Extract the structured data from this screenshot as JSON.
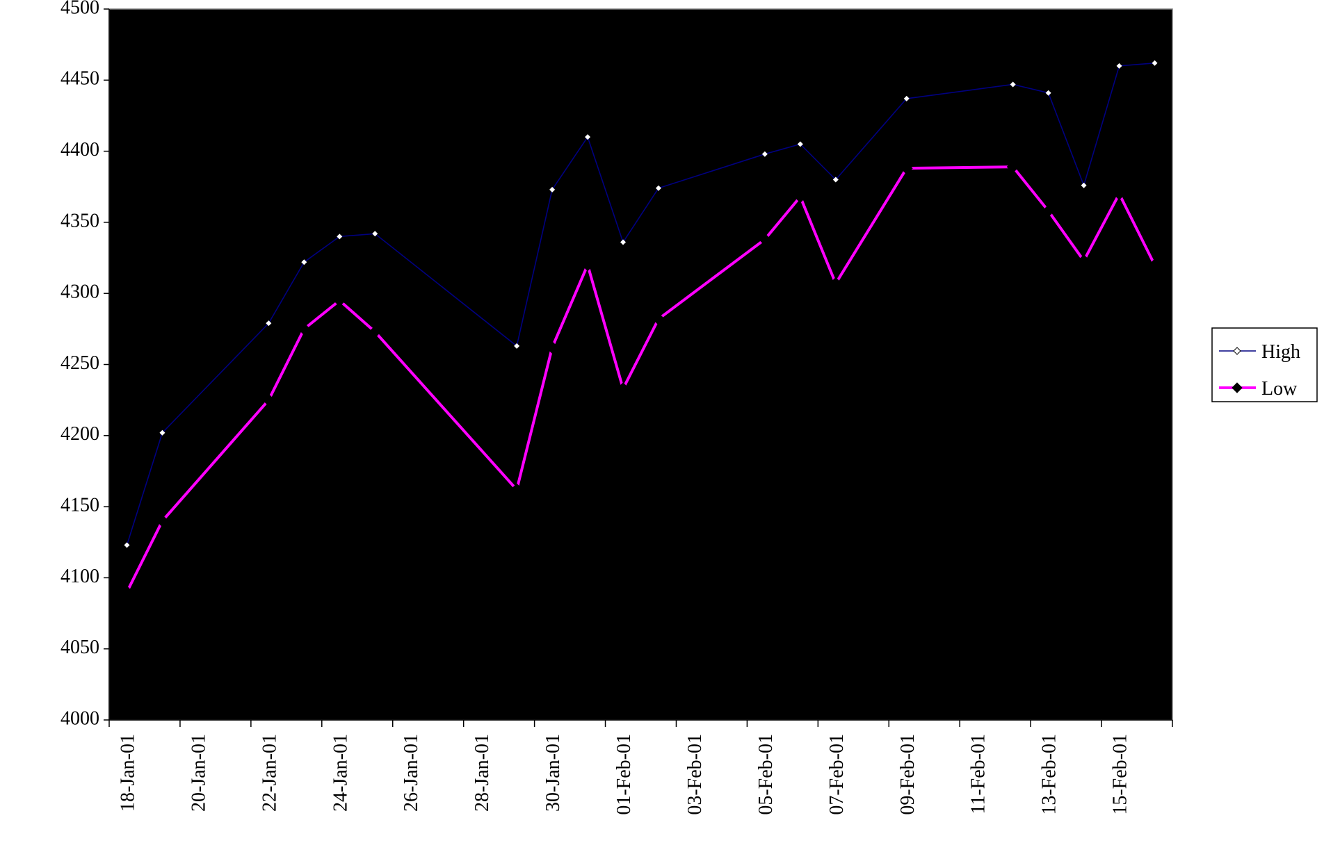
{
  "chart_data": {
    "type": "line",
    "x": [
      "18-Jan-01",
      "19-Jan-01",
      "22-Jan-01",
      "23-Jan-01",
      "24-Jan-01",
      "25-Jan-01",
      "29-Jan-01",
      "30-Jan-01",
      "31-Jan-01",
      "01-Feb-01",
      "02-Feb-01",
      "05-Feb-01",
      "06-Feb-01",
      "07-Feb-01",
      "09-Feb-01",
      "12-Feb-01",
      "13-Feb-01",
      "14-Feb-01",
      "15-Feb-01",
      "16-Feb-01"
    ],
    "series": [
      {
        "name": "High",
        "color": "#000080",
        "values": [
          4123,
          4202,
          4279,
          4322,
          4340,
          4342,
          4263,
          4373,
          4410,
          4336,
          4374,
          4398,
          4405,
          4380,
          4437,
          4447,
          4441,
          4376,
          4460,
          4462
        ]
      },
      {
        "name": "Low",
        "color": "#ff00ff",
        "values": [
          4090,
          4140,
          4225,
          4275,
          4295,
          4273,
          4162,
          4262,
          4320,
          4233,
          4282,
          4338,
          4368,
          4307,
          4388,
          4389,
          4358,
          4323,
          4370,
          4320
        ]
      }
    ],
    "xlim": [
      "18-Jan-01",
      "16-Feb-01"
    ],
    "xticks": [
      "18-Jan-01",
      "20-Jan-01",
      "22-Jan-01",
      "24-Jan-01",
      "26-Jan-01",
      "28-Jan-01",
      "30-Jan-01",
      "01-Feb-01",
      "03-Feb-01",
      "05-Feb-01",
      "07-Feb-01",
      "09-Feb-01",
      "11-Feb-01",
      "13-Feb-01",
      "15-Feb-01"
    ],
    "ylim": [
      4000,
      4500
    ],
    "yticks": [
      4000,
      4050,
      4100,
      4150,
      4200,
      4250,
      4300,
      4350,
      4400,
      4450,
      4500
    ],
    "legend": "right"
  }
}
